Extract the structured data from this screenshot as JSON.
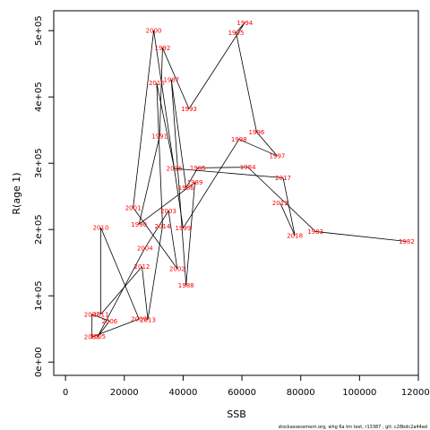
{
  "chart_data": {
    "type": "line",
    "xlabel": "SSB",
    "ylabel": "R(age 1)",
    "xlim": [
      -4000,
      120000
    ],
    "ylim": [
      -20000,
      530000
    ],
    "x_ticks": [
      0,
      20000,
      40000,
      60000,
      80000,
      100000,
      120000
    ],
    "x_tick_labels": [
      "0",
      "20000",
      "40000",
      "60000",
      "80000",
      "100000",
      "120000"
    ],
    "y_ticks": [
      0,
      100000,
      200000,
      300000,
      400000,
      500000
    ],
    "y_tick_labels": [
      "0e+00",
      "1e+05",
      "2e+05",
      "3e+05",
      "4e+05",
      "5e+05"
    ],
    "line_color": "#000000",
    "label_color": "#ff0000",
    "points": [
      {
        "year": "1982",
        "x": 116000,
        "y": 182000
      },
      {
        "year": "1983",
        "x": 85000,
        "y": 197000
      },
      {
        "year": "1984",
        "x": 62000,
        "y": 294000
      },
      {
        "year": "1985",
        "x": 45000,
        "y": 293000
      },
      {
        "year": "1986",
        "x": 41000,
        "y": 263000
      },
      {
        "year": "1987",
        "x": 36000,
        "y": 426000
      },
      {
        "year": "1988",
        "x": 41000,
        "y": 116000
      },
      {
        "year": "1989",
        "x": 44000,
        "y": 271000
      },
      {
        "year": "1990",
        "x": 25000,
        "y": 208000
      },
      {
        "year": "1991",
        "x": 32000,
        "y": 341000
      },
      {
        "year": "1992",
        "x": 33000,
        "y": 474000
      },
      {
        "year": "1993",
        "x": 42000,
        "y": 382000
      },
      {
        "year": "1994",
        "x": 61000,
        "y": 512000
      },
      {
        "year": "1995",
        "x": 58000,
        "y": 497000
      },
      {
        "year": "1996",
        "x": 65000,
        "y": 347000
      },
      {
        "year": "1997",
        "x": 72000,
        "y": 311000
      },
      {
        "year": "1998",
        "x": 59000,
        "y": 336000
      },
      {
        "year": "1999",
        "x": 40000,
        "y": 202000
      },
      {
        "year": "2000",
        "x": 30000,
        "y": 500000
      },
      {
        "year": "2001",
        "x": 23000,
        "y": 233000
      },
      {
        "year": "2002",
        "x": 38000,
        "y": 141000
      },
      {
        "year": "2003",
        "x": 35000,
        "y": 228000
      },
      {
        "year": "2004",
        "x": 27000,
        "y": 172000
      },
      {
        "year": "2005",
        "x": 11000,
        "y": 39000
      },
      {
        "year": "2006",
        "x": 15000,
        "y": 62000
      },
      {
        "year": "2007",
        "x": 9000,
        "y": 72000
      },
      {
        "year": "2008",
        "x": 9000,
        "y": 38000
      },
      {
        "year": "2009",
        "x": 25000,
        "y": 65000
      },
      {
        "year": "2010",
        "x": 12000,
        "y": 203000
      },
      {
        "year": "2011",
        "x": 12000,
        "y": 72000
      },
      {
        "year": "2012",
        "x": 26000,
        "y": 144000
      },
      {
        "year": "2013",
        "x": 28000,
        "y": 64000
      },
      {
        "year": "2014",
        "x": 33000,
        "y": 205000
      },
      {
        "year": "2015",
        "x": 31000,
        "y": 421000
      },
      {
        "year": "2016",
        "x": 37000,
        "y": 292000
      },
      {
        "year": "2017",
        "x": 74000,
        "y": 278000
      },
      {
        "year": "2018",
        "x": 78000,
        "y": 191000
      },
      {
        "year": "2019",
        "x": 73000,
        "y": 240000
      }
    ]
  },
  "footer": {
    "text": "stockassessment.org, whg 6a tm test, r13387 , git: c28bdc2a44ad"
  }
}
